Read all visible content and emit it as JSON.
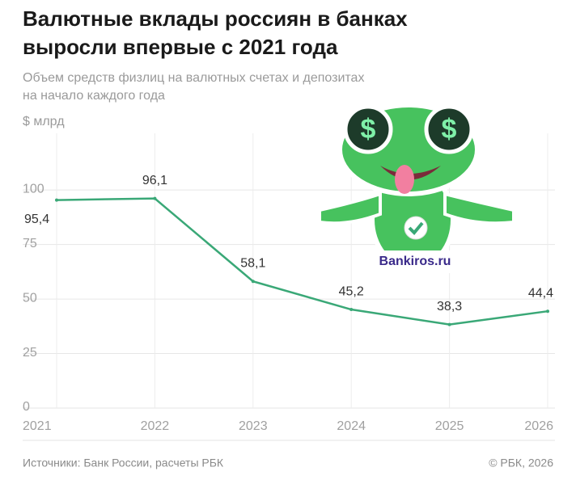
{
  "chart_data": {
    "type": "line",
    "title": [
      "Валютные вклады россиян в банках",
      "выросли впервые с 2021 года"
    ],
    "subtitle": [
      "Объем средств физлиц на валютных счетах и депозитах",
      "на начало каждого года"
    ],
    "y_label": "$ млрд",
    "categories": [
      "2021",
      "2022",
      "2023",
      "2024",
      "2025",
      "2026"
    ],
    "values": [
      95.4,
      96.1,
      58.1,
      45.2,
      38.3,
      44.4
    ],
    "value_labels": [
      "95,4",
      "96,1",
      "58,1",
      "45,2",
      "38,3",
      "44,4"
    ],
    "color": "#3aa877",
    "ylim": [
      0,
      126
    ],
    "yticks": [
      0,
      25,
      50,
      75,
      100
    ],
    "grid": true,
    "source": "Источники: Банк России, расчеты РБК",
    "credit": "© РБК, 2026",
    "watermark": "Bankiros.ru"
  }
}
